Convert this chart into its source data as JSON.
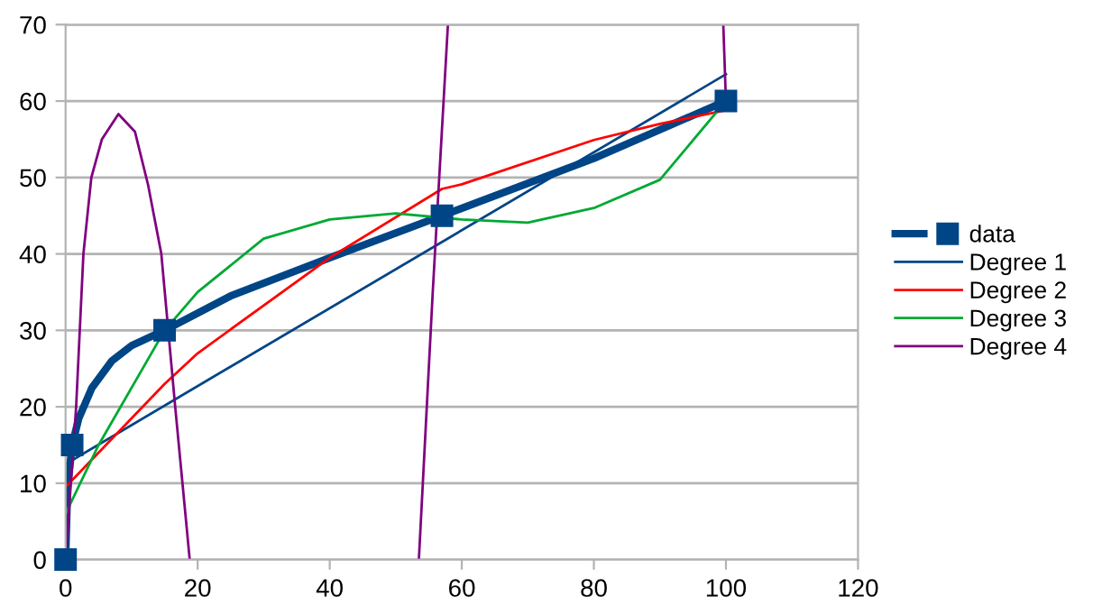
{
  "chart_data": {
    "type": "line",
    "xlim": [
      0,
      120
    ],
    "xticks": [
      0,
      20,
      40,
      60,
      80,
      100,
      120
    ],
    "ylim": [
      0,
      70
    ],
    "yticks": [
      0,
      10,
      20,
      30,
      40,
      50,
      60,
      70
    ],
    "grid": "y",
    "legend": "right",
    "series": [
      {
        "name": "data",
        "color": "#004586",
        "x": [
          0,
          0.3,
          1,
          2,
          4,
          7,
          10,
          15,
          25,
          40,
          57,
          80,
          100
        ],
        "values": [
          0,
          9.5,
          15,
          18.5,
          22.5,
          26,
          28,
          30,
          34.5,
          39.5,
          45,
          52.5,
          60
        ]
      },
      {
        "type": "scatter",
        "color": "#004586",
        "marker": "square",
        "x": [
          0,
          1,
          15,
          57,
          100
        ],
        "values": [
          0,
          15,
          30,
          45,
          60
        ]
      },
      {
        "name": "Degree 1",
        "color": "#004586",
        "x": [
          0,
          100
        ],
        "values": [
          12.5,
          63.5
        ]
      },
      {
        "name": "Degree 2",
        "color": "#ff0000",
        "x": [
          0,
          15,
          20,
          40,
          57,
          60,
          80,
          90,
          100
        ],
        "values": [
          9.5,
          23,
          27,
          39.5,
          48.5,
          49.1,
          54.9,
          57,
          58.8
        ]
      },
      {
        "name": "Degree 3",
        "color": "#00a933",
        "x": [
          0,
          5,
          15,
          20,
          30,
          40,
          50,
          60,
          70,
          80,
          90,
          100
        ],
        "values": [
          6,
          15,
          30,
          35,
          42,
          44.5,
          45.3,
          44.5,
          44.1,
          46,
          49.7,
          60
        ]
      },
      {
        "name": "Degree 4",
        "color": "#800080",
        "x": [
          0,
          1.6,
          2.7,
          3.9,
          5.5,
          8,
          10.5,
          12.5,
          14.5,
          16.6,
          18.8,
          36,
          53.5,
          55.6,
          57.9,
          78,
          99.6,
          100
        ],
        "values": [
          0,
          20,
          40,
          50,
          55,
          58.3,
          56,
          49,
          40,
          20,
          0,
          null,
          0,
          35,
          70,
          null,
          70,
          60
        ]
      }
    ]
  }
}
